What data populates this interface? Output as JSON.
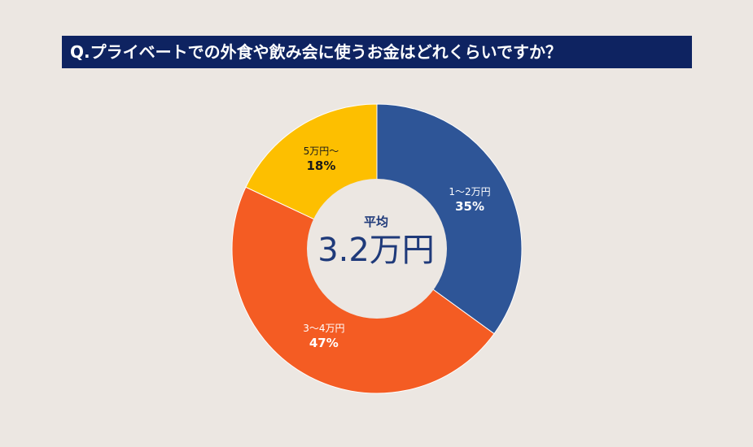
{
  "title": "Q.プライベートでの外食や飲み会に使うお金はどれくらいですか？",
  "center": {
    "caption": "平均",
    "value": "3.2万円"
  },
  "chart_data": {
    "type": "pie",
    "variant": "donut",
    "categories": [
      "1〜2万円",
      "3〜4万円",
      "5万円〜"
    ],
    "values": [
      35,
      47,
      18
    ],
    "value_labels": [
      "35%",
      "47%",
      "18%"
    ],
    "colors": [
      "#2e5597",
      "#f45c23",
      "#fdbf00"
    ],
    "start": "12 o'clock",
    "direction": "clockwise"
  },
  "colors": {
    "background": "#ece7e2",
    "title_bar": "#0e2361",
    "center_text": "#1f3a7a"
  }
}
